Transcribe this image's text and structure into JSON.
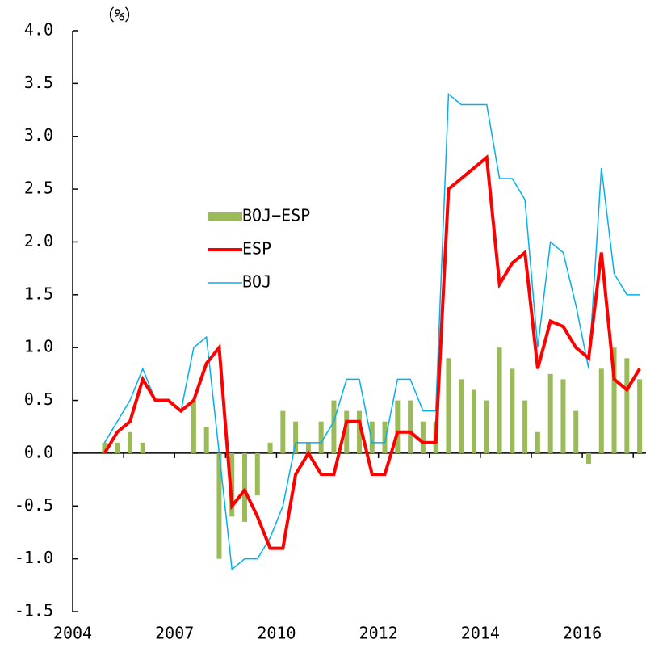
{
  "chart_data": {
    "type": "bar_line",
    "y_unit_label": "（%）",
    "categories": [
      "2004",
      null,
      null,
      null,
      null,
      null,
      null,
      null,
      "2007",
      null,
      null,
      null,
      null,
      null,
      null,
      null,
      "2010",
      null,
      null,
      null,
      null,
      null,
      null,
      null,
      "2012",
      null,
      null,
      null,
      null,
      null,
      null,
      null,
      "2014",
      null,
      null,
      null,
      null,
      null,
      null,
      null,
      "2016",
      null,
      null,
      null,
      null
    ],
    "series": [
      {
        "name": "BOJ−ESP",
        "kind": "bar",
        "color": "#9bbb59",
        "values": [
          null,
          null,
          0.1,
          0.1,
          0.2,
          0.1,
          0,
          0,
          0,
          0.5,
          0.25,
          -1.0,
          -0.6,
          -0.65,
          -0.4,
          0.1,
          0.4,
          0.3,
          0.1,
          0.3,
          0.5,
          0.4,
          0.4,
          0.3,
          0.3,
          0.5,
          0.5,
          0.3,
          0.3,
          0.9,
          0.7,
          0.6,
          0.5,
          1.0,
          0.8,
          0.5,
          0.2,
          0.75,
          0.7,
          0.4,
          -0.1,
          0.8,
          1.0,
          0.9,
          0.7
        ]
      },
      {
        "name": "ESP",
        "kind": "line",
        "color": "#ff0000",
        "values": [
          null,
          null,
          0,
          0.2,
          0.3,
          0.7,
          0.5,
          0.5,
          0.4,
          0.5,
          0.85,
          1.0,
          -0.5,
          -0.35,
          -0.6,
          -0.9,
          -0.9,
          -0.2,
          0,
          -0.2,
          -0.2,
          0.3,
          0.3,
          -0.2,
          -0.2,
          0.2,
          0.2,
          0.1,
          0.1,
          2.5,
          2.6,
          2.7,
          2.8,
          1.6,
          1.8,
          1.9,
          0.8,
          1.25,
          1.2,
          1.0,
          0.9,
          1.9,
          0.7,
          0.6,
          0.8
        ]
      },
      {
        "name": "BOJ",
        "kind": "line",
        "color": "#00b0f0",
        "values": [
          null,
          null,
          0.1,
          0.3,
          0.5,
          0.8,
          0.5,
          0.5,
          0.4,
          1.0,
          1.1,
          0.0,
          -1.1,
          -1.0,
          -1.0,
          -0.8,
          -0.5,
          0.1,
          0.1,
          0.1,
          0.3,
          0.7,
          0.7,
          0.1,
          0.1,
          0.7,
          0.7,
          0.4,
          0.4,
          3.4,
          3.3,
          3.3,
          3.3,
          2.6,
          2.6,
          2.4,
          1.0,
          2.0,
          1.9,
          1.4,
          0.8,
          2.7,
          1.7,
          1.5,
          1.5
        ]
      }
    ],
    "ylim": [
      -1.5,
      4.0
    ],
    "yticks": [
      {
        "value": -1.5,
        "label": "-1.5"
      },
      {
        "value": -1,
        "label": "-1.0"
      },
      -0.5,
      {
        "value": 0,
        "label": "0.0"
      },
      0.5,
      {
        "value": 1,
        "label": "1.0"
      },
      1.5,
      {
        "value": 2,
        "label": "2.0"
      },
      2.5,
      {
        "value": 3,
        "label": "3.0"
      },
      3.5,
      {
        "value": 4,
        "label": "4.0"
      }
    ],
    "legend": "center-left"
  }
}
